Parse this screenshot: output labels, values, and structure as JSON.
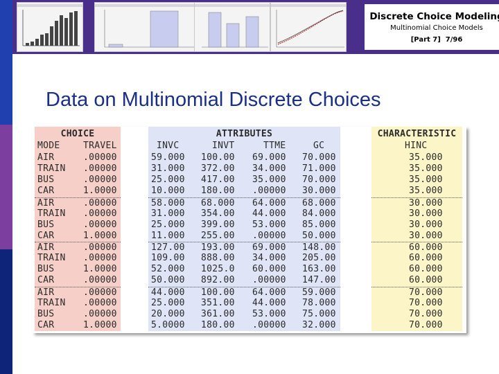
{
  "header": {
    "title": "Discrete Choice Modeling",
    "subtitle": "Multinomial Choice Models",
    "part": "[Part 7]",
    "page": "7/96"
  },
  "slide_title": "Data on Multinomial Discrete Choices",
  "table": {
    "groups": {
      "choice": "CHOICE",
      "attributes": "ATTRIBUTES",
      "characteristic": "CHARACTERISTIC"
    },
    "columns": {
      "mode": "MODE",
      "travel": "TRAVEL",
      "invc": "INVC",
      "invt": "INVT",
      "ttme": "TTME",
      "gc": "GC",
      "hinc": "HINC"
    },
    "rows": [
      [
        "AIR",
        ".00000",
        "59.000",
        "100.00",
        "69.000",
        "70.000",
        "35.000"
      ],
      [
        "TRAIN",
        ".00000",
        "31.000",
        "372.00",
        "34.000",
        "71.000",
        "35.000"
      ],
      [
        "BUS",
        ".00000",
        "25.000",
        "417.00",
        "35.000",
        "70.000",
        "35.000"
      ],
      [
        "CAR",
        "1.0000",
        "10.000",
        "180.00",
        ".00000",
        "30.000",
        "35.000"
      ],
      [
        "AIR",
        ".00000",
        "58.000",
        "68.000",
        "64.000",
        "68.000",
        "30.000"
      ],
      [
        "TRAIN",
        ".00000",
        "31.000",
        "354.00",
        "44.000",
        "84.000",
        "30.000"
      ],
      [
        "BUS",
        ".00000",
        "25.000",
        "399.00",
        "53.000",
        "85.000",
        "30.000"
      ],
      [
        "CAR",
        "1.0000",
        "11.000",
        "255.00",
        ".00000",
        "50.000",
        "30.000"
      ],
      [
        "AIR",
        ".00000",
        "127.00",
        "193.00",
        "69.000",
        "148.00",
        "60.000"
      ],
      [
        "TRAIN",
        ".00000",
        "109.00",
        "888.00",
        "34.000",
        "205.00",
        "60.000"
      ],
      [
        "BUS",
        "1.0000",
        "52.000",
        "1025.0",
        "60.000",
        "163.00",
        "60.000"
      ],
      [
        "CAR",
        ".00000",
        "50.000",
        "892.00",
        ".00000",
        "147.00",
        "60.000"
      ],
      [
        "AIR",
        ".00000",
        "44.000",
        "100.00",
        "64.000",
        "59.000",
        "70.000"
      ],
      [
        "TRAIN",
        ".00000",
        "25.000",
        "351.00",
        "44.000",
        "78.000",
        "70.000"
      ],
      [
        "BUS",
        ".00000",
        "20.000",
        "361.00",
        "53.000",
        "75.000",
        "70.000"
      ],
      [
        "CAR",
        "1.0000",
        "5.0000",
        "180.00",
        ".00000",
        "32.000",
        "70.000"
      ]
    ]
  },
  "colors": {
    "banner": "#4a2f8a",
    "title_text": "#1a2f86",
    "choice_bg": "#f7cfc9",
    "attributes_bg": "#dfe4f6",
    "characteristic_bg": "#fbf5c8"
  }
}
